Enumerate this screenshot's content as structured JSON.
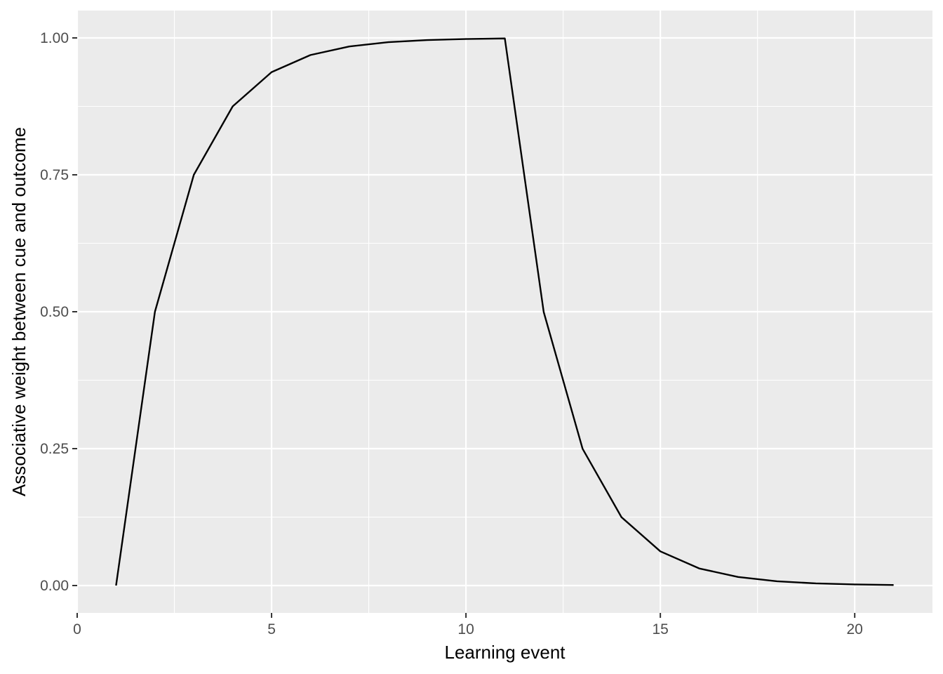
{
  "chart_data": {
    "type": "line",
    "title": "",
    "xlabel": "Learning event",
    "ylabel": "Associative weight between cue and outcome",
    "xlim": [
      0,
      22
    ],
    "ylim": [
      -0.05,
      1.05
    ],
    "x_ticks": [
      0,
      5,
      10,
      15,
      20
    ],
    "x_tick_labels": [
      "0",
      "5",
      "10",
      "15",
      "20"
    ],
    "y_ticks": [
      0,
      0.25,
      0.5,
      0.75,
      1.0
    ],
    "y_tick_labels": [
      "0.00",
      "0.25",
      "0.50",
      "0.75",
      "1.00"
    ],
    "grid": true,
    "legend": "none",
    "colors": {
      "panel": "#EBEBEB",
      "grid": "#FFFFFF",
      "line": "#000000",
      "tick_text": "#4D4D4D"
    },
    "series": [
      {
        "x": [
          1,
          2,
          3,
          4,
          5,
          6,
          7,
          8,
          9,
          10,
          11,
          12,
          13,
          14,
          15,
          16,
          17,
          18,
          19,
          20,
          21
        ],
        "values": [
          0,
          0.5,
          0.75,
          0.875,
          0.9375,
          0.96875,
          0.984375,
          0.9921875,
          0.99609375,
          0.998046875,
          0.9990234375,
          0.49951171875,
          0.249755859375,
          0.1248779296875,
          0.06243896484375,
          0.031219482421875,
          0.0156097412109375,
          0.00780487060546875,
          0.003902435302734375,
          0.0019512176513671875,
          0.0009756088256835938
        ]
      }
    ]
  }
}
